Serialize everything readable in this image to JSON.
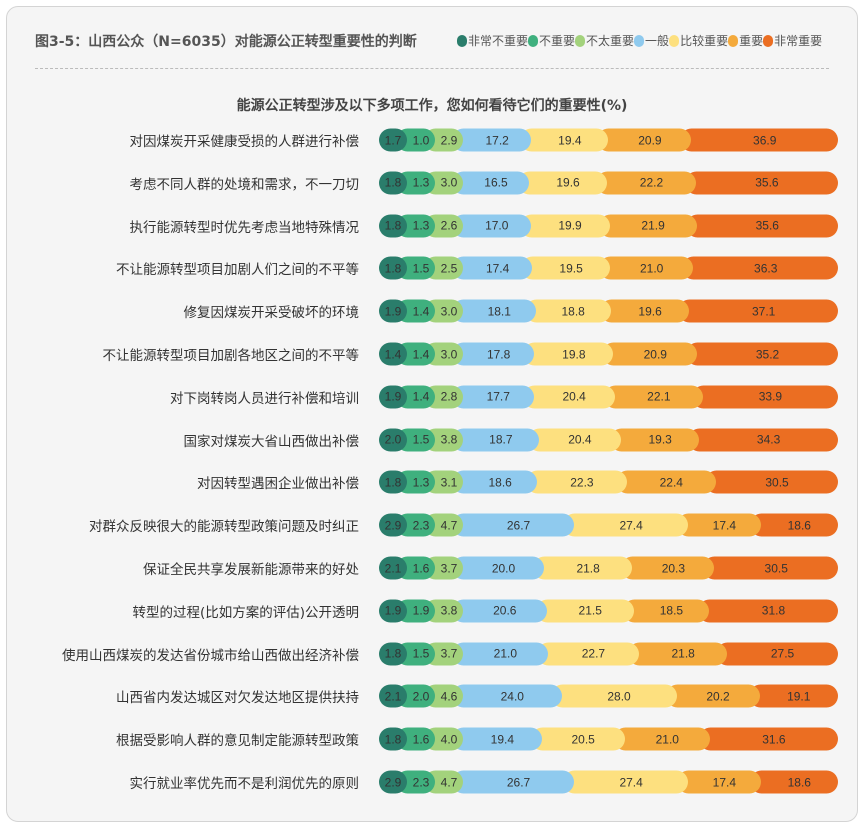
{
  "chart_data": {
    "type": "bar",
    "orientation": "horizontal-stacked-100",
    "title": "图3-5：山西公众（N=6035）对能源公正转型重要性的判断",
    "subtitle": "能源公正转型涉及以下多项工作，您如何看待它们的重要性(%)",
    "legend_position": "top-right",
    "series": [
      {
        "name": "非常不重要",
        "color": "#2a7d6b"
      },
      {
        "name": "不重要",
        "color": "#3fb07e"
      },
      {
        "name": "不太重要",
        "color": "#a3d27c"
      },
      {
        "name": "一般",
        "color": "#8fcaee"
      },
      {
        "name": "比较重要",
        "color": "#fde07f"
      },
      {
        "name": "重要",
        "color": "#f4aa3c"
      },
      {
        "name": "非常重要",
        "color": "#eb6e22"
      }
    ],
    "categories": [
      "对因煤炭开采健康受损的人群进行补偿",
      "考虑不同人群的处境和需求，不一刀切",
      "执行能源转型时优先考虑当地特殊情况",
      "不让能源转型项目加剧人们之间的不平等",
      "修复因煤炭开采受破坏的环境",
      "不让能源转型项目加剧各地区之间的不平等",
      "对下岗转岗人员进行补偿和培训",
      "国家对煤炭大省山西做出补偿",
      "对因转型遇困企业做出补偿",
      "对群众反映很大的能源转型政策问题及时纠正",
      "保证全民共享发展新能源带来的好处",
      "转型的过程(比如方案的评估)公开透明",
      "使用山西煤炭的发达省份城市给山西做出经济补偿",
      "山西省内发达城区对欠发达地区提供扶持",
      "根据受影响人群的意见制定能源转型政策",
      "实行就业率优先而不是利润优先的原则"
    ],
    "values": [
      [
        1.7,
        1.0,
        2.9,
        17.2,
        19.4,
        20.9,
        36.9
      ],
      [
        1.8,
        1.3,
        3.0,
        16.5,
        19.6,
        22.2,
        35.6
      ],
      [
        1.8,
        1.3,
        2.6,
        17.0,
        19.9,
        21.9,
        35.6
      ],
      [
        1.8,
        1.5,
        2.5,
        17.4,
        19.5,
        21.0,
        36.3
      ],
      [
        1.9,
        1.4,
        3.0,
        18.1,
        18.8,
        19.6,
        37.1
      ],
      [
        1.4,
        1.4,
        3.0,
        17.8,
        19.8,
        20.9,
        35.2
      ],
      [
        1.9,
        1.4,
        2.8,
        17.7,
        20.4,
        22.1,
        33.9
      ],
      [
        2.0,
        1.5,
        3.8,
        18.7,
        20.4,
        19.3,
        34.3
      ],
      [
        1.8,
        1.3,
        3.1,
        18.6,
        22.3,
        22.4,
        30.5
      ],
      [
        2.9,
        2.3,
        4.7,
        26.7,
        27.4,
        17.4,
        18.6
      ],
      [
        2.1,
        1.6,
        3.7,
        20.0,
        21.8,
        20.3,
        30.5
      ],
      [
        1.9,
        1.9,
        3.8,
        20.6,
        21.5,
        18.5,
        31.8
      ],
      [
        1.8,
        1.5,
        3.7,
        21.0,
        22.7,
        21.8,
        27.5
      ],
      [
        2.1,
        2.0,
        4.6,
        24.0,
        28.0,
        20.2,
        19.1
      ],
      [
        1.8,
        1.6,
        4.0,
        19.4,
        20.5,
        21.0,
        31.6
      ],
      [
        2.9,
        2.3,
        4.7,
        26.7,
        27.4,
        17.4,
        18.6
      ]
    ]
  }
}
